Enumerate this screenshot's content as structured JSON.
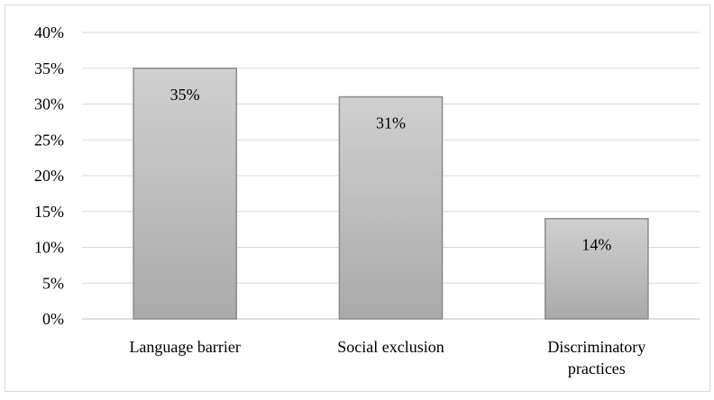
{
  "chart_data": {
    "type": "bar",
    "categories": [
      [
        "Language barrier"
      ],
      [
        "Social exclusion"
      ],
      [
        "Discriminatory",
        "practices"
      ]
    ],
    "values": [
      35,
      31,
      14
    ],
    "data_labels": [
      "35%",
      "31%",
      "14%"
    ],
    "y_ticks": [
      "0%",
      "5%",
      "10%",
      "15%",
      "20%",
      "25%",
      "30%",
      "35%",
      "40%"
    ],
    "ylim": [
      0,
      40
    ],
    "grid": true,
    "legend": "none",
    "colors": {
      "bar_top": "#d0d0d0",
      "bar_bottom": "#aaaaaa",
      "bar_border": "#8c8c8c",
      "grid": "#d9d9d9",
      "axis": "#bfbfbf"
    }
  }
}
